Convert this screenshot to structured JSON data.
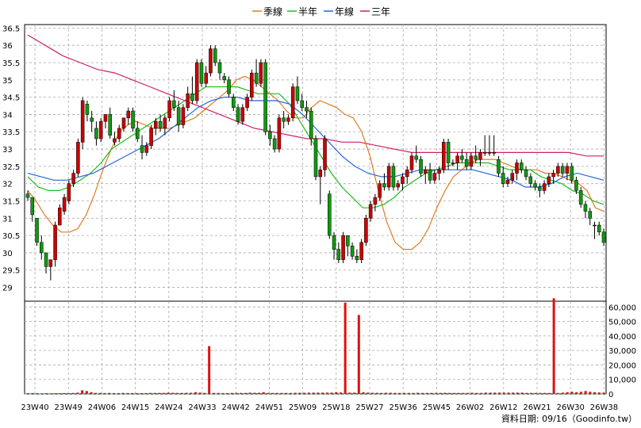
{
  "chart_data": {
    "type": "candlestick",
    "title": "",
    "legend": {
      "placement": "top-center",
      "items": [
        {
          "name": "季線",
          "color": "#e07b20"
        },
        {
          "name": "半年",
          "color": "#22bb22"
        },
        {
          "name": "年線",
          "color": "#2266dd"
        },
        {
          "name": "三年",
          "color": "#cc2266"
        }
      ]
    },
    "up_color": "#cc0000",
    "down_color": "#119911",
    "price_axis": {
      "min": 28.6,
      "max": 36.6,
      "ticks": [
        "36.5",
        "36",
        "35.5",
        "35",
        "34.5",
        "34",
        "33.5",
        "33",
        "32.5",
        "32",
        "31.5",
        "31",
        "30.5",
        "30",
        "29.5",
        "29"
      ],
      "grid": true
    },
    "volume_axis": {
      "min": 0,
      "max": 64000,
      "ticks": [
        "60,000",
        "50,000",
        "40,000",
        "30,000",
        "20,000",
        "10,000",
        "0"
      ]
    },
    "x_labels": [
      "23W40",
      "23W49",
      "24W06",
      "24W15",
      "24W24",
      "24W33",
      "24W42",
      "24W51",
      "25W09",
      "25W18",
      "25W27",
      "25W36",
      "25W45",
      "26W02",
      "26W12",
      "26W21",
      "26W30",
      "26W38"
    ],
    "footer": "資料日期: 09/16（Goodinfo.tw）",
    "candles": [
      [
        31.7,
        31.8,
        31.5,
        31.6
      ],
      [
        31.6,
        31.6,
        30.9,
        31.1
      ],
      [
        31.0,
        31.0,
        30.2,
        30.3
      ],
      [
        30.3,
        30.5,
        29.8,
        30.0
      ],
      [
        30.0,
        30.0,
        29.4,
        29.6
      ],
      [
        29.6,
        29.8,
        29.2,
        29.8
      ],
      [
        29.8,
        30.9,
        29.6,
        30.8
      ],
      [
        30.8,
        31.4,
        30.8,
        31.3
      ],
      [
        31.2,
        31.7,
        31.1,
        31.6
      ],
      [
        31.5,
        32.1,
        31.4,
        32.0
      ],
      [
        32.0,
        32.4,
        31.9,
        32.3
      ],
      [
        32.3,
        33.3,
        32.2,
        33.2
      ],
      [
        33.2,
        34.5,
        33.0,
        34.4
      ],
      [
        34.3,
        34.4,
        33.8,
        34.0
      ],
      [
        33.9,
        34.1,
        33.5,
        33.8
      ],
      [
        33.6,
        33.8,
        33.1,
        33.3
      ],
      [
        33.3,
        33.9,
        33.2,
        33.8
      ],
      [
        33.8,
        34.0,
        33.6,
        34.0
      ],
      [
        34.0,
        34.2,
        33.3,
        33.4
      ],
      [
        33.2,
        33.5,
        33.1,
        33.3
      ],
      [
        33.3,
        33.7,
        33.2,
        33.6
      ],
      [
        33.6,
        33.9,
        33.5,
        33.9
      ],
      [
        33.9,
        34.2,
        33.7,
        34.1
      ],
      [
        34.1,
        34.2,
        33.5,
        33.6
      ],
      [
        33.6,
        33.8,
        33.2,
        33.3
      ],
      [
        33.1,
        33.4,
        32.7,
        32.9
      ],
      [
        32.9,
        33.2,
        32.8,
        33.1
      ],
      [
        33.1,
        33.7,
        33.0,
        33.6
      ],
      [
        33.6,
        33.9,
        33.4,
        33.8
      ],
      [
        33.8,
        34.0,
        33.5,
        33.6
      ],
      [
        33.6,
        34.0,
        33.4,
        33.9
      ],
      [
        33.9,
        34.5,
        33.8,
        34.4
      ],
      [
        34.4,
        34.7,
        34.1,
        34.2
      ],
      [
        34.2,
        34.4,
        33.5,
        33.7
      ],
      [
        33.7,
        34.3,
        33.6,
        34.2
      ],
      [
        34.2,
        34.8,
        34.1,
        34.6
      ],
      [
        34.6,
        35.1,
        34.3,
        34.4
      ],
      [
        34.4,
        35.6,
        34.3,
        35.5
      ],
      [
        35.5,
        35.6,
        34.8,
        34.9
      ],
      [
        34.9,
        35.4,
        34.8,
        35.2
      ],
      [
        35.2,
        36.0,
        35.1,
        35.9
      ],
      [
        35.9,
        36.0,
        35.4,
        35.5
      ],
      [
        35.5,
        35.6,
        35.0,
        35.2
      ],
      [
        35.1,
        35.2,
        34.9,
        35.0
      ],
      [
        35.0,
        35.1,
        34.5,
        34.6
      ],
      [
        34.5,
        34.6,
        34.1,
        34.2
      ],
      [
        34.2,
        34.3,
        33.7,
        33.8
      ],
      [
        33.8,
        34.3,
        33.7,
        34.2
      ],
      [
        34.2,
        34.6,
        34.1,
        34.5
      ],
      [
        34.5,
        35.3,
        34.4,
        35.2
      ],
      [
        35.2,
        35.6,
        34.8,
        34.9
      ],
      [
        34.9,
        35.6,
        34.8,
        35.5
      ],
      [
        35.5,
        35.6,
        33.4,
        33.5
      ],
      [
        33.5,
        33.7,
        33.1,
        33.3
      ],
      [
        33.3,
        33.4,
        32.9,
        33.0
      ],
      [
        33.0,
        34.0,
        32.9,
        33.9
      ],
      [
        33.9,
        34.1,
        33.6,
        33.8
      ],
      [
        33.8,
        34.0,
        33.7,
        33.9
      ],
      [
        33.9,
        34.9,
        33.8,
        34.8
      ],
      [
        34.8,
        35.1,
        34.3,
        34.4
      ],
      [
        34.4,
        34.6,
        34.1,
        34.2
      ],
      [
        34.2,
        34.4,
        33.9,
        34.1
      ],
      [
        34.1,
        34.2,
        33.1,
        33.3
      ],
      [
        33.3,
        33.4,
        32.1,
        32.2
      ],
      [
        32.2,
        32.5,
        31.4,
        32.4
      ],
      [
        32.4,
        33.4,
        32.2,
        33.3
      ],
      [
        31.7,
        31.8,
        30.4,
        30.5
      ],
      [
        30.5,
        30.6,
        29.8,
        30.1
      ],
      [
        30.1,
        30.3,
        29.7,
        29.8
      ],
      [
        29.8,
        30.6,
        29.7,
        30.5
      ],
      [
        30.5,
        30.5,
        29.9,
        30.2
      ],
      [
        30.2,
        30.3,
        29.8,
        29.9
      ],
      [
        29.9,
        30.1,
        29.7,
        29.8
      ],
      [
        29.8,
        30.4,
        29.7,
        30.3
      ],
      [
        30.3,
        31.1,
        30.2,
        31.0
      ],
      [
        31.0,
        31.5,
        30.9,
        31.4
      ],
      [
        31.4,
        31.7,
        31.2,
        31.6
      ],
      [
        31.6,
        32.1,
        31.5,
        32.0
      ],
      [
        32.0,
        32.3,
        31.8,
        31.9
      ],
      [
        31.9,
        32.6,
        31.8,
        32.5
      ],
      [
        32.5,
        32.6,
        31.8,
        31.9
      ],
      [
        31.9,
        32.1,
        31.8,
        32.0
      ],
      [
        32.0,
        32.3,
        31.8,
        32.2
      ],
      [
        32.2,
        32.5,
        32.0,
        32.4
      ],
      [
        32.4,
        32.9,
        32.3,
        32.8
      ],
      [
        32.8,
        33.1,
        32.6,
        32.7
      ],
      [
        32.7,
        32.8,
        32.2,
        32.3
      ],
      [
        32.3,
        32.5,
        32.0,
        32.4
      ],
      [
        32.4,
        32.6,
        32.0,
        32.1
      ],
      [
        32.1,
        32.4,
        32.0,
        32.3
      ],
      [
        32.3,
        32.5,
        32.1,
        32.4
      ],
      [
        32.4,
        33.3,
        32.3,
        33.2
      ],
      [
        33.2,
        33.3,
        32.4,
        32.6
      ],
      [
        32.6,
        32.7,
        32.5,
        32.6
      ],
      [
        32.6,
        32.9,
        32.4,
        32.8
      ],
      [
        32.8,
        33.0,
        32.6,
        32.7
      ],
      [
        32.7,
        32.9,
        32.4,
        32.5
      ],
      [
        32.5,
        32.9,
        32.4,
        32.8
      ],
      [
        32.8,
        33.1,
        32.6,
        32.7
      ],
      [
        32.7,
        33.0,
        32.5,
        32.9
      ],
      [
        32.9,
        33.4,
        32.8,
        32.9
      ],
      [
        32.9,
        33.4,
        32.8,
        32.9
      ],
      [
        32.9,
        33.4,
        32.8,
        32.9
      ],
      [
        32.7,
        32.8,
        32.2,
        32.3
      ],
      [
        32.3,
        32.5,
        31.9,
        32.0
      ],
      [
        32.0,
        32.2,
        31.9,
        32.1
      ],
      [
        32.1,
        32.4,
        32.0,
        32.3
      ],
      [
        32.3,
        32.7,
        32.1,
        32.6
      ],
      [
        32.6,
        32.7,
        32.3,
        32.4
      ],
      [
        32.4,
        32.5,
        32.1,
        32.2
      ],
      [
        32.2,
        32.3,
        31.9,
        32.0
      ],
      [
        32.0,
        32.1,
        31.8,
        31.9
      ],
      [
        31.9,
        32.0,
        31.6,
        31.8
      ],
      [
        31.8,
        32.1,
        31.7,
        32.0
      ],
      [
        32.0,
        32.3,
        31.9,
        32.2
      ],
      [
        32.2,
        32.4,
        32.0,
        32.3
      ],
      [
        32.3,
        32.6,
        32.2,
        32.5
      ],
      [
        32.5,
        32.6,
        32.2,
        32.3
      ],
      [
        32.3,
        32.6,
        32.1,
        32.5
      ],
      [
        32.5,
        32.6,
        32.0,
        32.1
      ],
      [
        32.1,
        32.2,
        31.7,
        31.8
      ],
      [
        31.8,
        31.9,
        31.3,
        31.4
      ],
      [
        31.4,
        31.5,
        31.0,
        31.2
      ],
      [
        31.2,
        31.3,
        30.8,
        31.0
      ],
      [
        30.8,
        30.9,
        30.4,
        30.8
      ],
      [
        30.8,
        30.9,
        30.5,
        30.6
      ],
      [
        30.6,
        30.7,
        30.2,
        30.3
      ]
    ],
    "volume": [
      500,
      600,
      500,
      400,
      500,
      400,
      500,
      500,
      600,
      500,
      700,
      900,
      2500,
      2000,
      1200,
      700,
      700,
      600,
      700,
      600,
      600,
      700,
      600,
      600,
      600,
      600,
      600,
      700,
      700,
      700,
      700,
      900,
      800,
      700,
      700,
      800,
      800,
      1200,
      900,
      700,
      33000,
      700,
      700,
      600,
      600,
      700,
      700,
      700,
      700,
      900,
      800,
      800,
      1200,
      700,
      700,
      700,
      700,
      700,
      700,
      800,
      800,
      800,
      900,
      900,
      900,
      900,
      900,
      900,
      1200,
      1000,
      63000,
      900,
      900,
      54500,
      1200,
      900,
      800,
      800,
      700,
      800,
      800,
      700,
      700,
      700,
      700,
      700,
      800,
      700,
      700,
      700,
      700,
      700,
      800,
      700,
      700,
      700,
      700,
      700,
      800,
      700,
      700,
      900,
      900,
      900,
      900,
      900,
      900,
      900,
      900,
      900,
      700,
      700,
      700,
      700,
      700,
      700,
      66000,
      700,
      900,
      1200,
      1500,
      1200,
      1500,
      2000,
      1500,
      1200,
      1000,
      900
    ],
    "ma_series": [
      {
        "name": "季線",
        "values": [
          31.8,
          31.5,
          31.1,
          30.8,
          30.6,
          30.6,
          30.7,
          31.1,
          31.7,
          32.4,
          33.0,
          33.5,
          33.7,
          33.8,
          33.7,
          33.6,
          33.6,
          33.6,
          33.7,
          33.8,
          33.9,
          34.1,
          34.3,
          34.5,
          34.7,
          35.0,
          35.1,
          35.0,
          34.8,
          34.6,
          34.4,
          34.1,
          33.9,
          33.9,
          34.2,
          34.4,
          34.3,
          34.2,
          34.0,
          33.9,
          33.5,
          32.8,
          31.8,
          30.9,
          30.3,
          30.1,
          30.1,
          30.3,
          30.7,
          31.3,
          31.8,
          32.2,
          32.4,
          32.6,
          32.7,
          32.7,
          32.7,
          32.6,
          32.5,
          32.4,
          32.4,
          32.4,
          32.3,
          32.3,
          32.2,
          32.1,
          32.0,
          31.8,
          31.3,
          31.2
        ]
      },
      {
        "name": "半年",
        "values": [
          32.2,
          31.9,
          31.8,
          31.8,
          31.9,
          32.1,
          32.3,
          32.6,
          33.0,
          33.2,
          33.4,
          33.6,
          33.8,
          34.0,
          34.2,
          34.4,
          34.6,
          34.8,
          34.8,
          34.8,
          34.8,
          34.7,
          34.6,
          34.6,
          34.6,
          34.3,
          33.8,
          33.3,
          32.8,
          32.3,
          31.9,
          31.6,
          31.3,
          31.3,
          31.4,
          31.6,
          31.9,
          32.1,
          32.3,
          32.4,
          32.5,
          32.6,
          32.6,
          32.6,
          32.6,
          32.5,
          32.4,
          32.4,
          32.4,
          32.2,
          32.1,
          32.0,
          31.8,
          31.7,
          31.5,
          31.4
        ]
      },
      {
        "name": "年線",
        "values": [
          32.3,
          32.2,
          32.1,
          32.1,
          32.2,
          32.3,
          32.5,
          32.7,
          32.9,
          33.1,
          33.3,
          33.6,
          33.9,
          34.2,
          34.4,
          34.5,
          34.5,
          34.4,
          34.4,
          34.4,
          34.3,
          34.0,
          33.6,
          33.2,
          32.8,
          32.5,
          32.3,
          32.2,
          32.2,
          32.3,
          32.4,
          32.4,
          32.4,
          32.4,
          32.4,
          32.3,
          32.2,
          32.1,
          31.9,
          31.9,
          32.0,
          32.2,
          32.3,
          32.2,
          32.1
        ]
      },
      {
        "name": "三年",
        "values": [
          36.3,
          36.0,
          35.7,
          35.5,
          35.3,
          35.2,
          35.0,
          34.8,
          34.6,
          34.4,
          34.2,
          34.0,
          33.8,
          33.6,
          33.5,
          33.4,
          33.3,
          33.3,
          33.2,
          33.2,
          33.1,
          33.0,
          32.9,
          32.9,
          32.9,
          32.9,
          32.9,
          32.9,
          32.9,
          32.9,
          32.9,
          32.9,
          32.8,
          32.8
        ]
      }
    ]
  }
}
